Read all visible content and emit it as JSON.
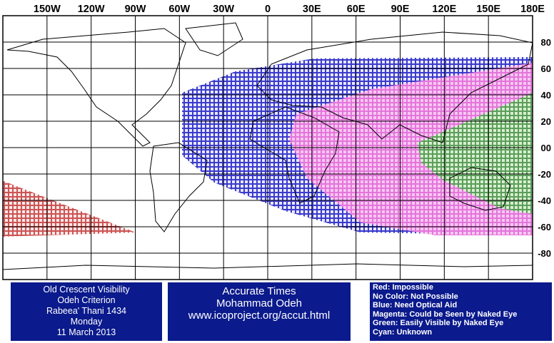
{
  "map": {
    "lon_labels": [
      "150W",
      "120W",
      "90W",
      "60W",
      "30W",
      "0",
      "30E",
      "60E",
      "90E",
      "120E",
      "150E",
      "180E"
    ],
    "lat_labels": [
      "80",
      "60",
      "40",
      "20",
      "00",
      "-20",
      "-40",
      "-60",
      "-80"
    ]
  },
  "info_box": {
    "lines": [
      "Old Crescent Visibility",
      "Odeh Criterion",
      "Rabeea' Thani 1434",
      "Monday",
      "11 March 2013"
    ]
  },
  "credit_box": {
    "lines": [
      "Accurate Times",
      "Mohammad Odeh",
      "www.icoproject.org/accut.html"
    ]
  },
  "legend_box": {
    "lines": [
      "Red: Impossible",
      "No Color: Not Possible",
      "Blue: Need Optical Aid",
      "Magenta: Could be Seen by Naked Eye",
      "Green: Easily Visible by Naked Eye",
      "Cyan: Unknown"
    ]
  }
}
